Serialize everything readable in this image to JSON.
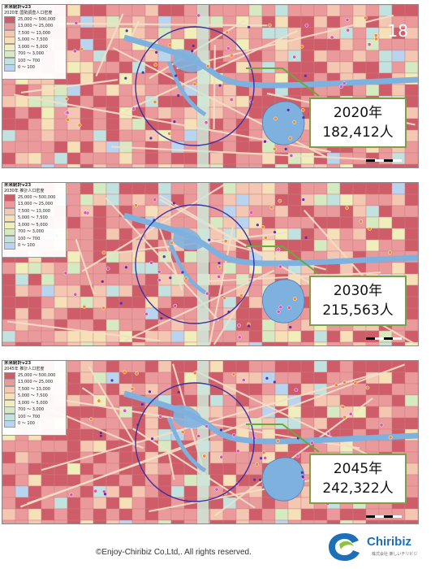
{
  "colors": {
    "map_base": "#e89a96",
    "callout_border": "#7aa14a",
    "circle": "#3a2fa0",
    "leader_line": "#6ea83c",
    "water": "#7fb1df",
    "road": "#f3dfc8",
    "logo_blue": "#1d6fb8",
    "logo_green": "#8fc23f"
  },
  "legend": {
    "rows": [
      {
        "range": "25,000 〜 500,000",
        "color": "#cf5d69"
      },
      {
        "range": "13,000 〜 25,000",
        "color": "#ea9a9a"
      },
      {
        "range": "7,500 〜 13,000",
        "color": "#f3c7b2"
      },
      {
        "range": "5,000 〜 7,500",
        "color": "#f6e0b8"
      },
      {
        "range": "3,000 〜 5,000",
        "color": "#f0efbc"
      },
      {
        "range": "700 〜 3,000",
        "color": "#d5eac0"
      },
      {
        "range": "100 〜 700",
        "color": "#c2e2e0"
      },
      {
        "range": "0 〜 100",
        "color": "#b9d4ee"
      }
    ]
  },
  "panels": [
    {
      "legend_app": "未来統計v23",
      "legend_title": "2020年 国勢調査人口密度",
      "badge": "18",
      "year": "2020年",
      "population": "182,412人"
    },
    {
      "legend_app": "未来統計v23",
      "legend_title": "2030年 推計人口密度",
      "badge": "",
      "year": "2030年",
      "population": "215,563人"
    },
    {
      "legend_app": "未来統計v23",
      "legend_title": "2045年 推計人口密度",
      "badge": "",
      "year": "2045年",
      "population": "242,322人"
    }
  ],
  "footer": {
    "copyright": "©Enjoy-Chiribiz  Co,Ltd,.  All rights reserved."
  },
  "logo": {
    "name": "Chiribiz",
    "subtitle": "株式会社 楽しいチリビジ"
  }
}
